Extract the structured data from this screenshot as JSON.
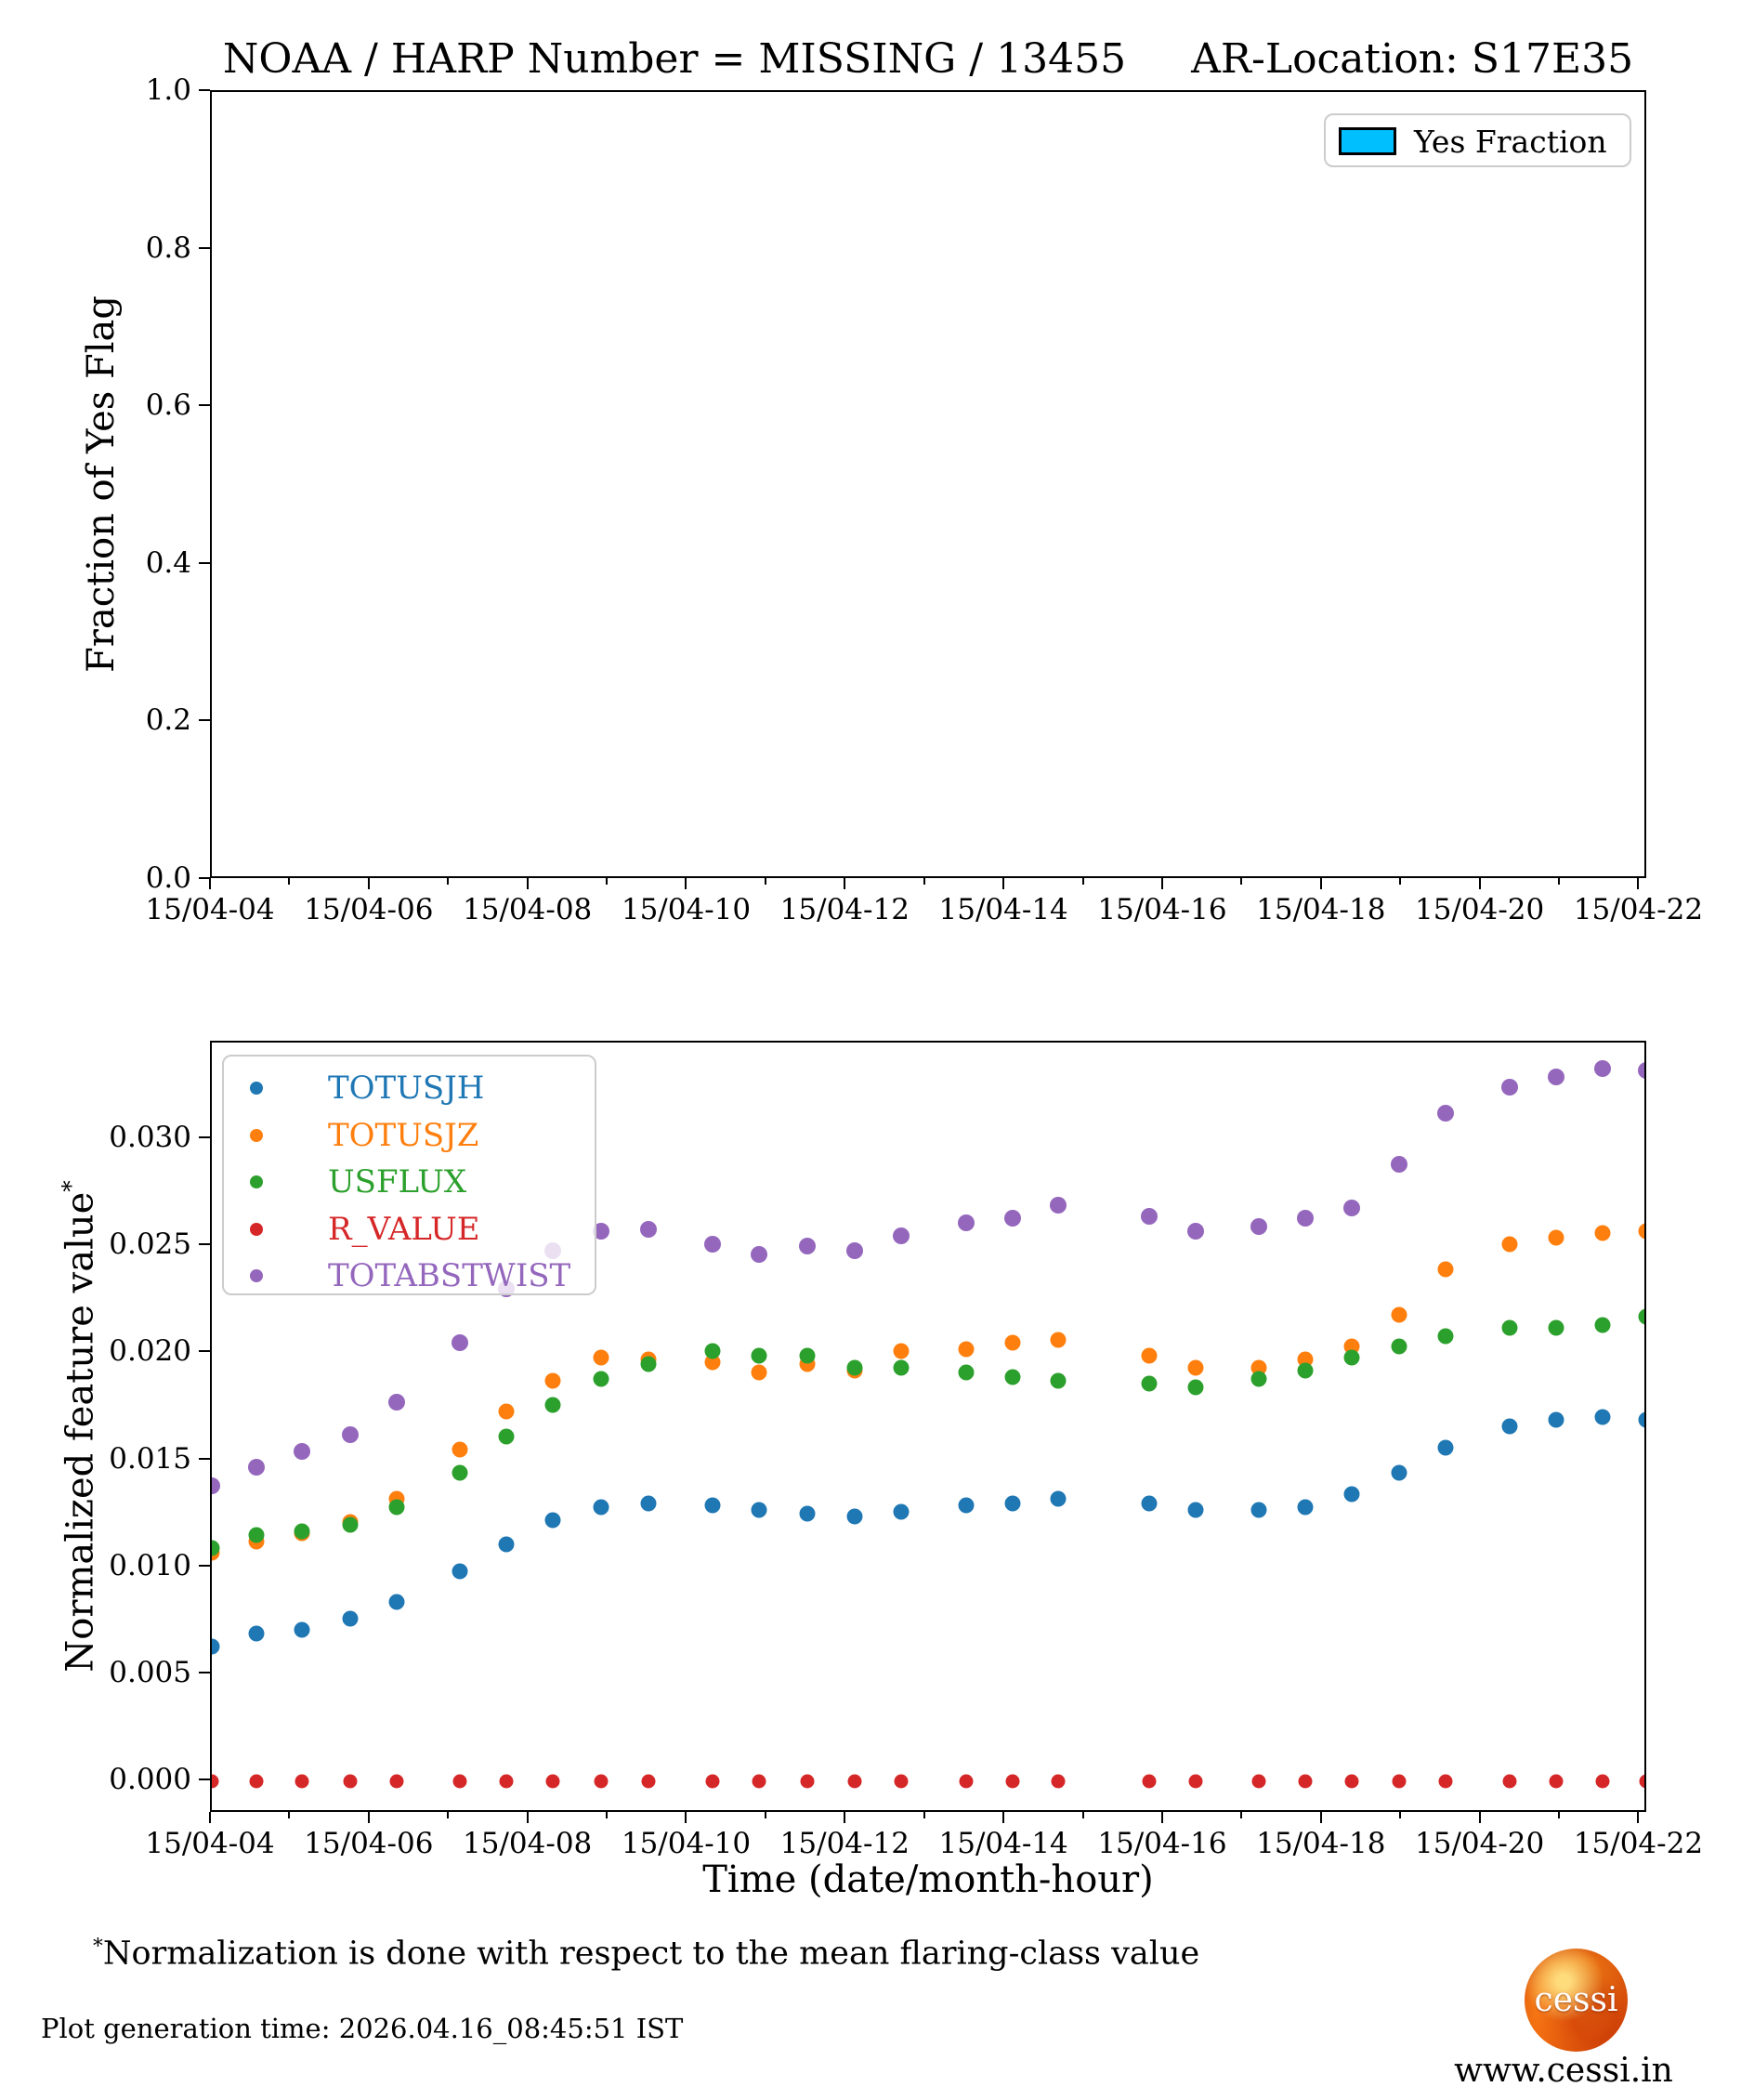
{
  "title": {
    "part1": "NOAA / HARP Number = MISSING / 13455",
    "part2": "AR-Location: S17E35"
  },
  "footer": {
    "footnote_star": "*",
    "footnote": "Normalization is done with respect to the mean flaring-class value",
    "generation_time": "Plot generation time: 2026.04.16_08:45:51 IST",
    "website": "www.cessi.in",
    "logo_text": "cessi"
  },
  "chart_data": [
    {
      "type": "bar",
      "title": "",
      "ylabel": "Fraction of Yes Flag",
      "xlabel": "",
      "ylim": [
        0.0,
        1.0
      ],
      "xlim_hours": [
        4.0,
        22.1
      ],
      "yticks": [
        "0.0",
        "0.2",
        "0.4",
        "0.6",
        "0.8",
        "1.0"
      ],
      "ytick_values": [
        0.0,
        0.2,
        0.4,
        0.6,
        0.8,
        1.0
      ],
      "xticklabels": [
        "15/04-04",
        "15/04-06",
        "15/04-08",
        "15/04-10",
        "15/04-12",
        "15/04-14",
        "15/04-16",
        "15/04-18",
        "15/04-20",
        "15/04-22"
      ],
      "xtick_hours": [
        4,
        6,
        8,
        10,
        12,
        14,
        16,
        18,
        20,
        22
      ],
      "minor_tick_hours": [
        5,
        7,
        9,
        11,
        13,
        15,
        17,
        19,
        21
      ],
      "grid": false,
      "legend": {
        "position": "top-right",
        "label": "Yes Fraction",
        "color": "#00BFFF"
      },
      "x": [],
      "values": [],
      "note": "no bars plotted - fraction of yes flag has no data shown"
    },
    {
      "type": "scatter",
      "title": "",
      "ylabel": "Normalized feature value",
      "ylabel_sup": "*",
      "xlabel": "Time (date/month-hour)",
      "ylim": [
        -0.0015,
        0.0345
      ],
      "xlim_hours": [
        4.0,
        22.1
      ],
      "yticks": [
        "0.000",
        "0.005",
        "0.010",
        "0.015",
        "0.020",
        "0.025",
        "0.030"
      ],
      "ytick_values": [
        0.0,
        0.005,
        0.01,
        0.015,
        0.02,
        0.025,
        0.03
      ],
      "xticklabels": [
        "15/04-04",
        "15/04-06",
        "15/04-08",
        "15/04-10",
        "15/04-12",
        "15/04-14",
        "15/04-16",
        "15/04-18",
        "15/04-20",
        "15/04-22"
      ],
      "xtick_hours": [
        4,
        6,
        8,
        10,
        12,
        14,
        16,
        18,
        20,
        22
      ],
      "minor_tick_hours": [
        5,
        7,
        9,
        11,
        13,
        15,
        17,
        19,
        21
      ],
      "grid": false,
      "legend": {
        "position": "top-left"
      },
      "x_hours": [
        4.0,
        4.56,
        5.14,
        5.74,
        6.33,
        7.13,
        7.71,
        8.3,
        8.91,
        9.5,
        10.31,
        10.9,
        11.51,
        12.1,
        12.69,
        13.51,
        14.09,
        14.66,
        15.81,
        16.4,
        17.2,
        17.78,
        18.37,
        18.96,
        19.55,
        20.35,
        20.94,
        21.53,
        22.08
      ],
      "series": [
        {
          "name": "TOTUSJH",
          "color": "#1f77b4",
          "marker_px": 17,
          "values": [
            0.0063,
            0.0069,
            0.0071,
            0.0076,
            0.0084,
            0.0098,
            0.0111,
            0.0122,
            0.0128,
            0.013,
            0.0129,
            0.0127,
            0.0125,
            0.0124,
            0.0126,
            0.0129,
            0.013,
            0.0132,
            0.013,
            0.0127,
            0.0127,
            0.0128,
            0.0134,
            0.0144,
            0.0156,
            0.0166,
            0.0169,
            0.017,
            0.0169
          ]
        },
        {
          "name": "TOTUSJZ",
          "color": "#ff7f0e",
          "marker_px": 17,
          "values": [
            0.0107,
            0.0112,
            0.0116,
            0.0121,
            0.0132,
            0.0155,
            0.0173,
            0.0187,
            0.0198,
            0.0197,
            0.0196,
            0.0191,
            0.0195,
            0.0192,
            0.0201,
            0.0202,
            0.0205,
            0.0206,
            0.0199,
            0.0193,
            0.0193,
            0.0197,
            0.0203,
            0.0218,
            0.0239,
            0.0251,
            0.0254,
            0.0256,
            0.0257
          ]
        },
        {
          "name": "USFLUX",
          "color": "#2ca02c",
          "marker_px": 17,
          "values": [
            0.0109,
            0.0115,
            0.0117,
            0.012,
            0.0128,
            0.0144,
            0.0161,
            0.0176,
            0.0188,
            0.0195,
            0.0201,
            0.0199,
            0.0199,
            0.0193,
            0.0193,
            0.0191,
            0.0189,
            0.0187,
            0.0186,
            0.0184,
            0.0188,
            0.0192,
            0.0198,
            0.0203,
            0.0208,
            0.0212,
            0.0212,
            0.0213,
            0.0217
          ]
        },
        {
          "name": "R_VALUE",
          "color": "#d62728",
          "marker_px": 15,
          "values": [
            0.0,
            0.0,
            0.0,
            0.0,
            0.0,
            0.0,
            0.0,
            0.0,
            0.0,
            0.0,
            0.0,
            0.0,
            0.0,
            0.0,
            0.0,
            0.0,
            0.0,
            0.0,
            0.0,
            0.0,
            0.0,
            0.0,
            0.0,
            0.0,
            0.0,
            0.0,
            0.0,
            0.0,
            0.0
          ]
        },
        {
          "name": "TOTABSTWIST",
          "color": "#9467bd",
          "marker_px": 18,
          "values": [
            0.0138,
            0.0147,
            0.0154,
            0.0162,
            0.0177,
            0.0205,
            0.023,
            0.0248,
            0.0257,
            0.0258,
            0.0251,
            0.0246,
            0.025,
            0.0248,
            0.0255,
            0.0261,
            0.0263,
            0.0269,
            0.0264,
            0.0257,
            0.0259,
            0.0263,
            0.0268,
            0.0288,
            0.0312,
            0.0324,
            0.0329,
            0.0333,
            0.0332
          ]
        }
      ]
    }
  ]
}
